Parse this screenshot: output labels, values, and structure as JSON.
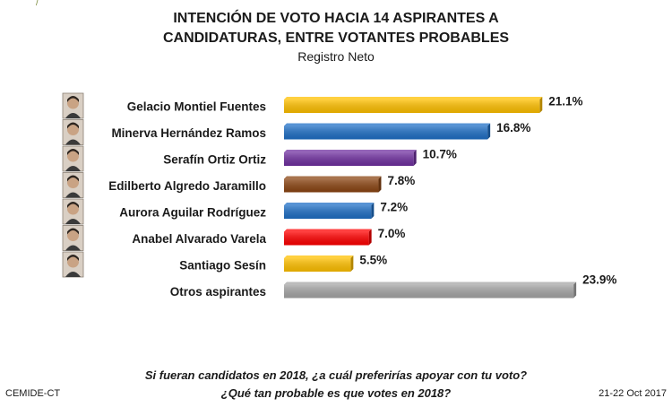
{
  "header": {
    "title_line1": "INTENCIÓN DE VOTO HACIA 14 ASPIRANTES A",
    "title_line2": "CANDIDATURAS, ENTRE VOTANTES PROBABLES",
    "subtitle": "Registro Neto"
  },
  "chart_data": {
    "type": "bar",
    "orientation": "horizontal",
    "title": "INTENCIÓN DE VOTO HACIA 14 ASPIRANTES A CANDIDATURAS, ENTRE VOTANTES PROBABLES",
    "subtitle": "Registro Neto",
    "categories": [
      "Gelacio Montiel Fuentes",
      "Minerva Hernández Ramos",
      "Serafín Ortiz Ortiz",
      "Edilberto Algredo Jaramillo",
      "Aurora Aguilar Rodríguez",
      "Anabel Alvarado Varela",
      "Santiago Sesín",
      "Otros aspirantes"
    ],
    "values": [
      21.1,
      16.8,
      10.7,
      7.8,
      7.2,
      7.0,
      5.5,
      23.9
    ],
    "value_labels": [
      "21.1%",
      "16.8%",
      "10.7%",
      "7.8%",
      "7.2%",
      "7.0%",
      "5.5%",
      "23.9%"
    ],
    "colors": [
      "#FFC000",
      "#1F6FC5",
      "#7030A0",
      "#8B4513",
      "#1F6FC5",
      "#FF0000",
      "#FFC000",
      "#A6A6A6"
    ],
    "has_photo": [
      true,
      true,
      true,
      true,
      true,
      true,
      true,
      false
    ],
    "xlim": [
      0,
      25
    ],
    "grid": false,
    "legend": "none"
  },
  "footer": {
    "question_line1": "Si fueran candidatos en 2018, ¿a cuál preferirías apoyar con tu voto?",
    "question_line2": "¿Qué tan probable es que votes en 2018?",
    "source": "CEMIDE-CT",
    "date": "21-22 Oct 2017"
  }
}
